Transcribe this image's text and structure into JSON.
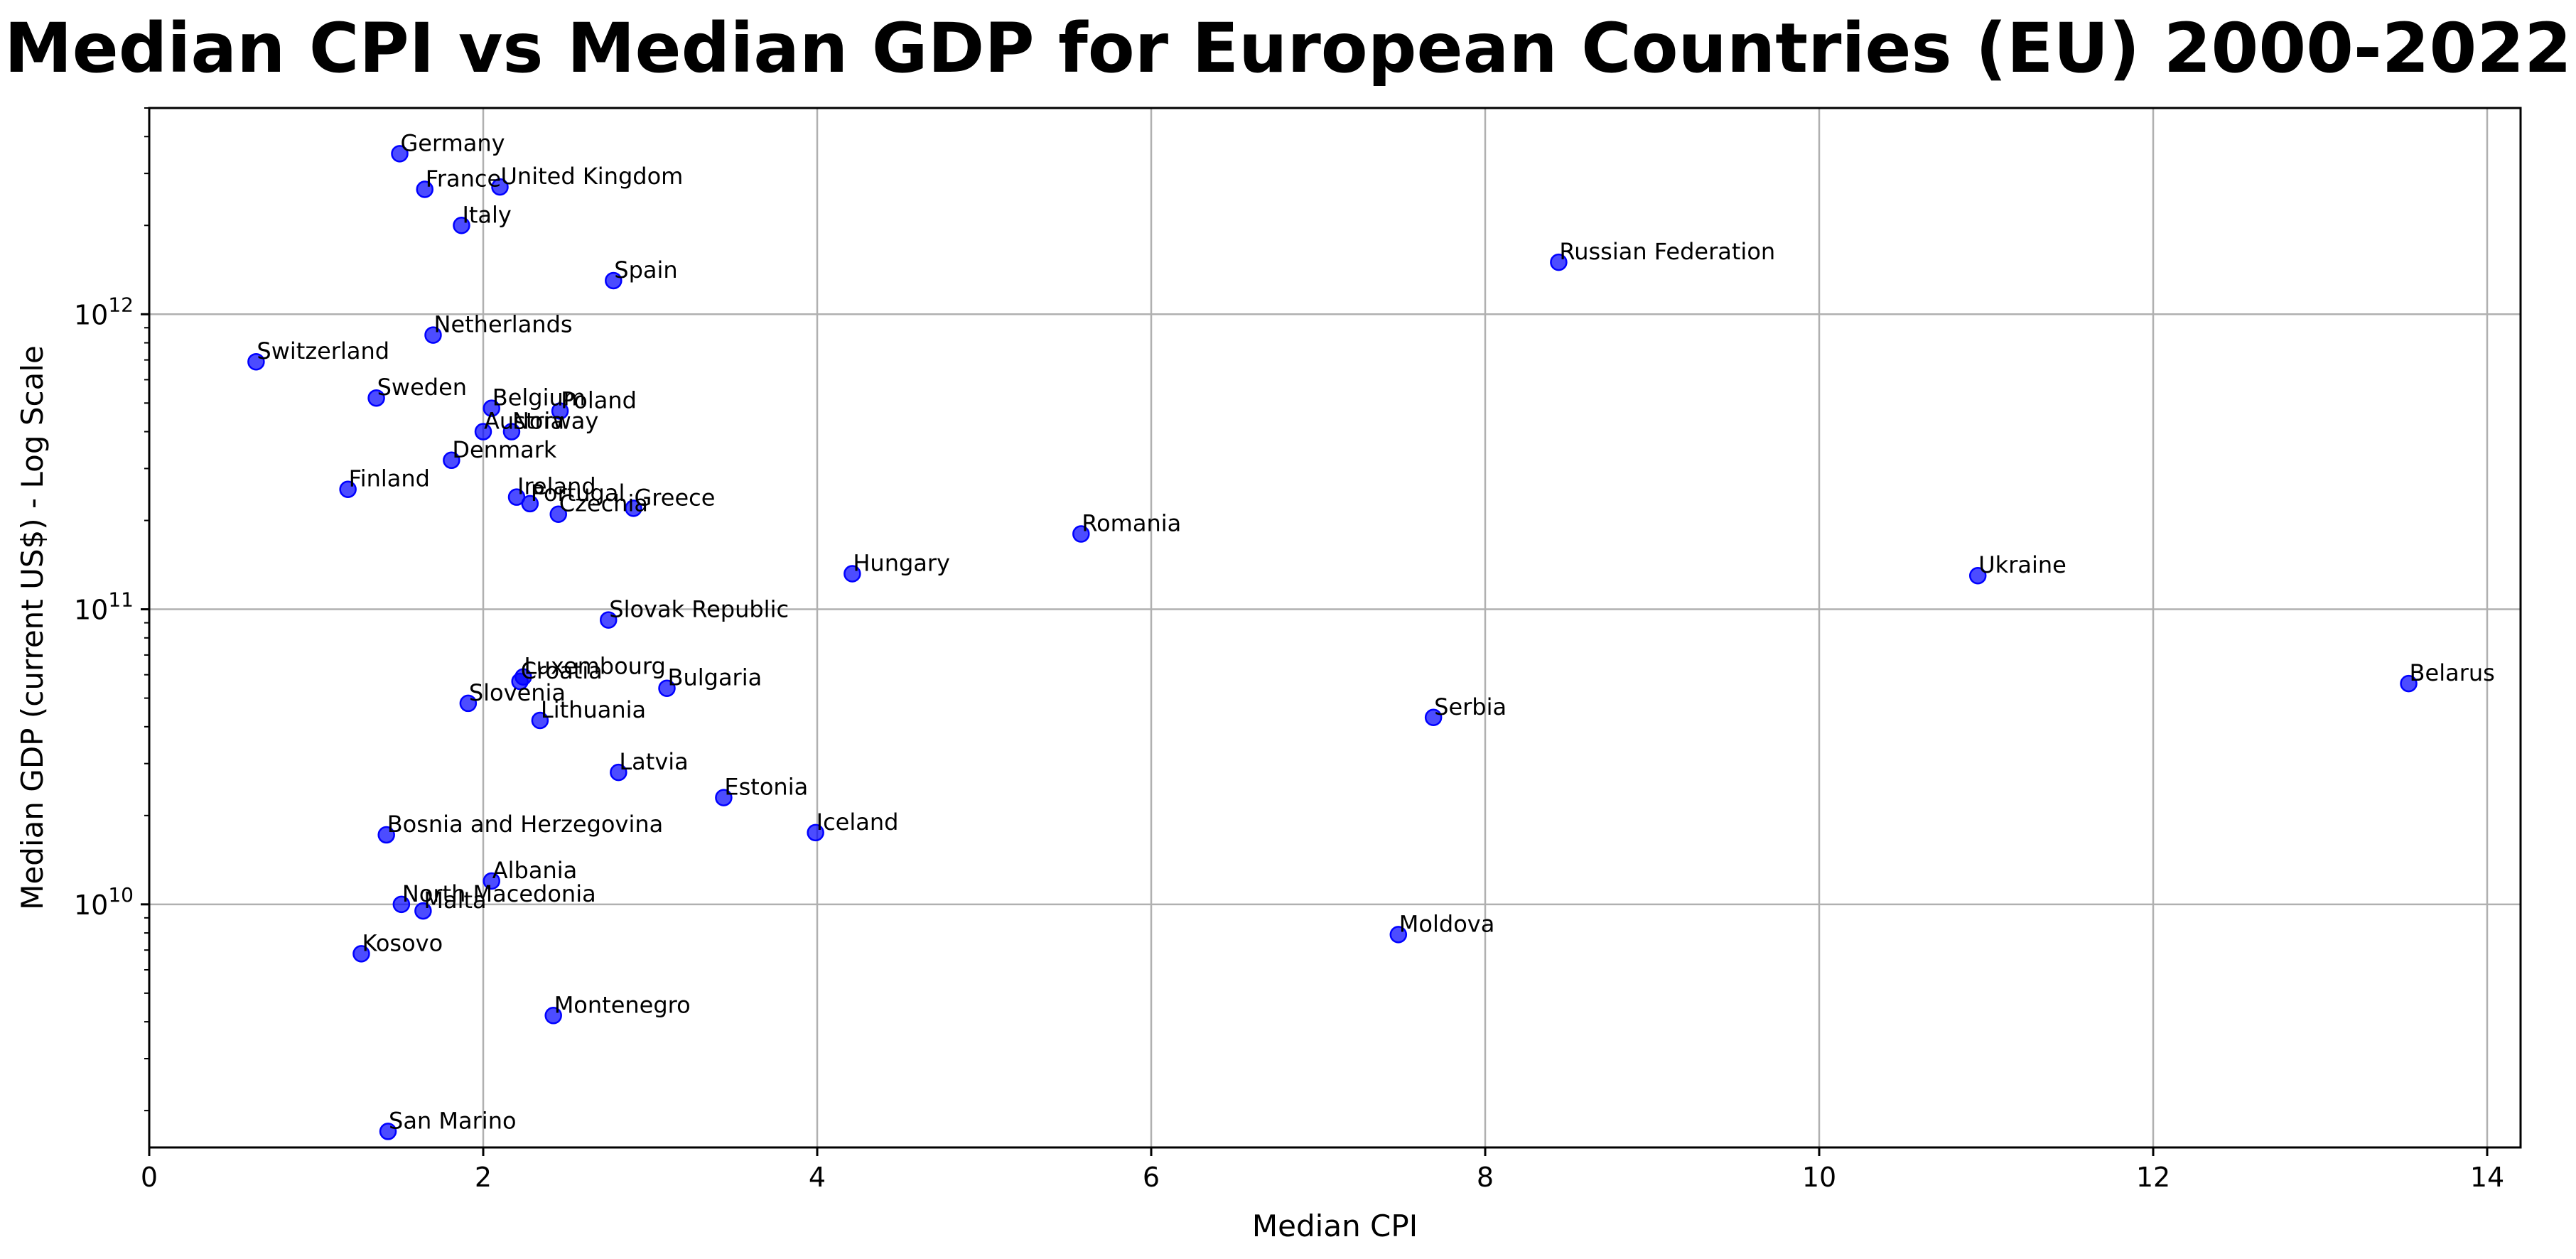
{
  "chart_data": {
    "type": "scatter",
    "title": "Median CPI vs Median GDP for European Countries (EU) 2000-2022",
    "xlabel": "Median CPI",
    "ylabel": "Median GDP (current US$) - Log Scale",
    "xlim": [
      0,
      14.2
    ],
    "ylim": [
      1500000000.0,
      5000000000000.0
    ],
    "y_scale": "log",
    "grid": true,
    "x_ticks": [
      0,
      2,
      4,
      6,
      8,
      10,
      12,
      14
    ],
    "y_ticks": [
      10000000000.0,
      100000000000.0,
      1000000000000.0
    ],
    "marker_color": "#0000ff",
    "points": [
      {
        "label": "Germany",
        "x": 1.5,
        "y": 3500000000000.0
      },
      {
        "label": "France",
        "x": 1.65,
        "y": 2650000000000.0
      },
      {
        "label": "United Kingdom",
        "x": 2.1,
        "y": 2700000000000.0
      },
      {
        "label": "Italy",
        "x": 1.87,
        "y": 2000000000000.0
      },
      {
        "label": "Spain",
        "x": 2.78,
        "y": 1300000000000.0
      },
      {
        "label": "Russian Federation",
        "x": 8.44,
        "y": 1500000000000.0
      },
      {
        "label": "Netherlands",
        "x": 1.7,
        "y": 850000000000.0
      },
      {
        "label": "Switzerland",
        "x": 0.64,
        "y": 690000000000.0
      },
      {
        "label": "Sweden",
        "x": 1.36,
        "y": 520000000000.0
      },
      {
        "label": "Belgium",
        "x": 2.05,
        "y": 480000000000.0
      },
      {
        "label": "Poland",
        "x": 2.46,
        "y": 470000000000.0
      },
      {
        "label": "Austria",
        "x": 2.0,
        "y": 400000000000.0
      },
      {
        "label": "Norway",
        "x": 2.17,
        "y": 400000000000.0
      },
      {
        "label": "Denmark",
        "x": 1.81,
        "y": 320000000000.0
      },
      {
        "label": "Finland",
        "x": 1.19,
        "y": 255000000000.0
      },
      {
        "label": "Ireland",
        "x": 2.2,
        "y": 240000000000.0
      },
      {
        "label": "Portugal",
        "x": 2.28,
        "y": 228000000000.0
      },
      {
        "label": "Czechia",
        "x": 2.45,
        "y": 210000000000.0
      },
      {
        "label": "Greece",
        "x": 2.9,
        "y": 220000000000.0
      },
      {
        "label": "Romania",
        "x": 5.58,
        "y": 180000000000.0
      },
      {
        "label": "Hungary",
        "x": 4.21,
        "y": 132000000000.0
      },
      {
        "label": "Ukraine",
        "x": 10.95,
        "y": 130000000000.0
      },
      {
        "label": "Slovak Republic",
        "x": 2.75,
        "y": 92000000000.0
      },
      {
        "label": "Luxembourg",
        "x": 2.24,
        "y": 59000000000.0
      },
      {
        "label": "Croatia",
        "x": 2.22,
        "y": 57000000000.0
      },
      {
        "label": "Bulgaria",
        "x": 3.1,
        "y": 54000000000.0
      },
      {
        "label": "Belarus",
        "x": 13.53,
        "y": 56000000000.0
      },
      {
        "label": "Slovenia",
        "x": 1.91,
        "y": 48000000000.0
      },
      {
        "label": "Lithuania",
        "x": 2.34,
        "y": 42000000000.0
      },
      {
        "label": "Serbia",
        "x": 7.69,
        "y": 43000000000.0
      },
      {
        "label": "Latvia",
        "x": 2.81,
        "y": 28000000000.0
      },
      {
        "label": "Estonia",
        "x": 3.44,
        "y": 23000000000.0
      },
      {
        "label": "Iceland",
        "x": 3.99,
        "y": 17500000000.0
      },
      {
        "label": "Bosnia and Herzegovina",
        "x": 1.42,
        "y": 17200000000.0
      },
      {
        "label": "Albania",
        "x": 2.05,
        "y": 12000000000.0
      },
      {
        "label": "North Macedonia",
        "x": 1.51,
        "y": 10000000000.0
      },
      {
        "label": "Malta",
        "x": 1.64,
        "y": 9500000000.0
      },
      {
        "label": "Moldova",
        "x": 7.48,
        "y": 7900000000.0
      },
      {
        "label": "Kosovo",
        "x": 1.27,
        "y": 6800000000.0
      },
      {
        "label": "Montenegro",
        "x": 2.42,
        "y": 4200000000.0
      },
      {
        "label": "San Marino",
        "x": 1.43,
        "y": 1700000000.0
      }
    ]
  }
}
